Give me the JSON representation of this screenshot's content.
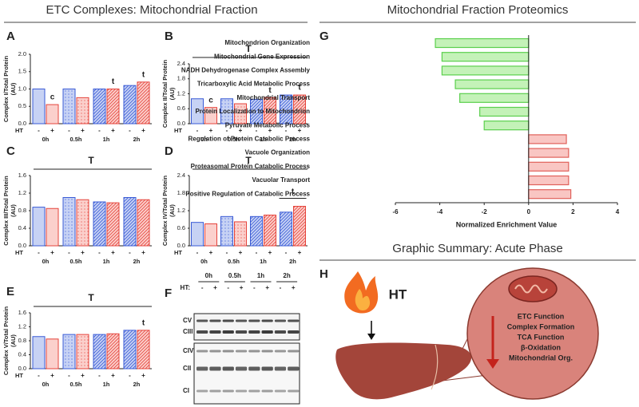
{
  "titles": {
    "left": "ETC Complexes: Mitochondrial Fraction",
    "right": "Mitochondrial Fraction Proteomics"
  },
  "chart_data": [
    {
      "type": "bar",
      "panel": "A",
      "ylabel": "Complex I/Total Protein",
      "yunit": "(AU)",
      "x_group_label": "HT",
      "categories": [
        "0h",
        "0.5h",
        "1h",
        "2h"
      ],
      "series": [
        {
          "name": "-",
          "color": "#3a5bd6",
          "fill": "#c7d2f4",
          "values": [
            1.0,
            1.0,
            1.0,
            1.1
          ]
        },
        {
          "name": "+",
          "color": "#e5443c",
          "fill": "#fbd0cc",
          "values": [
            0.55,
            0.75,
            1.0,
            1.2
          ],
          "labels": [
            "c",
            null,
            "t",
            "t"
          ]
        }
      ],
      "ylim": [
        0,
        2
      ],
      "yticks": [
        {
          "value": 0,
          "label": "0.0"
        },
        0.5,
        {
          "value": 1,
          "label": "1.0"
        },
        1.5,
        {
          "value": 2,
          "label": "2.0"
        }
      ]
    },
    {
      "type": "bar",
      "panel": "B",
      "ylabel": "Complex II/Total Protein",
      "yunit": "(AU)",
      "x_group_label": "HT",
      "significance": "T",
      "categories": [
        "0h",
        "0.5h",
        "1h",
        "2h"
      ],
      "series": [
        {
          "name": "-",
          "color": "#3a5bd6",
          "fill": "#c7d2f4",
          "values": [
            1.0,
            1.0,
            0.98,
            1.15
          ]
        },
        {
          "name": "+",
          "color": "#e5443c",
          "fill": "#fbd0cc",
          "values": [
            0.65,
            0.8,
            1.05,
            1.15
          ],
          "labels": [
            "c",
            null,
            "t",
            "t"
          ]
        }
      ],
      "ylim": [
        0,
        2.4
      ],
      "yticks": [
        {
          "value": 0,
          "label": "0.0"
        },
        0.6,
        1.2,
        1.8,
        2.4
      ]
    },
    {
      "type": "bar",
      "panel": "C",
      "ylabel": "Complex III/Total Protein",
      "yunit": "(AU)",
      "x_group_label": "HT",
      "significance": "T",
      "categories": [
        "0h",
        "0.5h",
        "1h",
        "2h"
      ],
      "series": [
        {
          "name": "-",
          "color": "#3a5bd6",
          "fill": "#c7d2f4",
          "values": [
            0.88,
            1.1,
            1.0,
            1.1
          ]
        },
        {
          "name": "+",
          "color": "#e5443c",
          "fill": "#fbd0cc",
          "values": [
            0.85,
            1.05,
            0.98,
            1.05
          ]
        }
      ],
      "ylim": [
        0,
        1.6
      ],
      "yticks": [
        {
          "value": 0,
          "label": "0.0"
        },
        0.4,
        0.8,
        1.2,
        1.6
      ]
    },
    {
      "type": "bar",
      "panel": "D",
      "ylabel": "Complex IV/Total Protein",
      "yunit": "(AU)",
      "x_group_label": "HT",
      "significance": "T",
      "categories": [
        "0h",
        "0.5h",
        "1h",
        "2h"
      ],
      "series": [
        {
          "name": "-",
          "color": "#3a5bd6",
          "fill": "#c7d2f4",
          "values": [
            0.8,
            1.0,
            1.0,
            1.15
          ]
        },
        {
          "name": "+",
          "color": "#e5443c",
          "fill": "#fbd0cc",
          "values": [
            0.75,
            0.82,
            1.05,
            1.35
          ]
        }
      ],
      "group_labels": [
        null,
        null,
        null,
        "t"
      ],
      "ylim": [
        0,
        2.4
      ],
      "yticks": [
        {
          "value": 0,
          "label": "0.0"
        },
        0.6,
        1.2,
        1.8,
        2.4
      ]
    },
    {
      "type": "bar",
      "panel": "E",
      "ylabel": "Complex V/Total Protein",
      "yunit": "(AU)",
      "x_group_label": "HT",
      "significance": "T",
      "categories": [
        "0h",
        "0.5h",
        "1h",
        "2h"
      ],
      "series": [
        {
          "name": "-",
          "color": "#3a5bd6",
          "fill": "#c7d2f4",
          "values": [
            0.92,
            0.98,
            0.98,
            1.1
          ]
        },
        {
          "name": "+",
          "color": "#e5443c",
          "fill": "#fbd0cc",
          "values": [
            0.85,
            0.98,
            1.0,
            1.1
          ],
          "labels": [
            null,
            null,
            null,
            "t"
          ]
        }
      ],
      "ylim": [
        0,
        1.6
      ],
      "yticks": [
        {
          "value": 0,
          "label": "0.0"
        },
        0.4,
        0.8,
        1.2,
        1.6
      ]
    },
    {
      "type": "barh",
      "panel": "G",
      "xlabel": "Normalized Enrichment Value",
      "categories": [
        "Mitochondrion Organization",
        "Mitochondrial Gene Expression",
        "NADH Dehydrogenase Complex Assembly",
        "Tricarboxylic Acid Metabolic Process",
        "Mitochondrial Transport",
        "Protein Localization to Mitochondrion",
        "Pyruvate Metabolic Process",
        "Regulation of Protein Catabolic Process",
        "Vacuole Organization",
        "Proteasomal Protein Catabolic Process",
        "Vacuolar Transport",
        "Positive Regulation of Catabolic Process"
      ],
      "values": [
        -4.2,
        -3.9,
        -3.9,
        -3.3,
        -3.1,
        -2.2,
        -2.0,
        1.7,
        1.8,
        1.8,
        1.8,
        1.9
      ],
      "negative_color": {
        "fill": "#c4f2b8",
        "stroke": "#5bcf4d"
      },
      "positive_color": {
        "fill": "#f9c6c3",
        "stroke": "#e0605a"
      },
      "xlim": [
        -6,
        4
      ],
      "xticks": [
        -6,
        -4,
        -2,
        0,
        2,
        4
      ]
    }
  ],
  "blot": {
    "panel": "F",
    "times": [
      "0h",
      "0.5h",
      "1h",
      "2h"
    ],
    "ht_label": "HT:",
    "signs": [
      "-",
      "+"
    ],
    "bands": [
      "CV",
      "CIII",
      "CIV",
      "CII",
      "CI"
    ]
  },
  "summary": {
    "title": "Graphic Summary: Acute Phase",
    "panel": "H",
    "trigger": "HT",
    "effects": [
      "ETC Function",
      "Complex Formation",
      "TCA Function",
      "β-Oxidation",
      "Mitochondrial Org."
    ]
  }
}
